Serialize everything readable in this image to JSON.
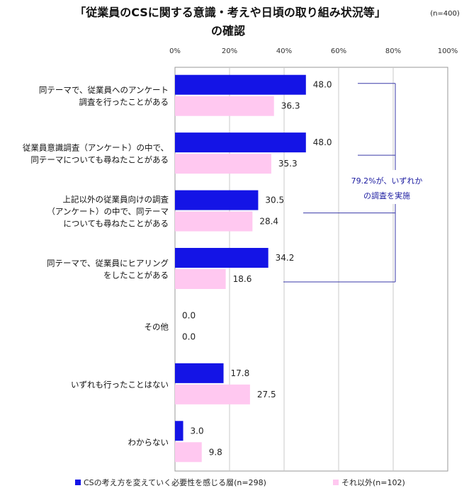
{
  "chart_data": {
    "type": "bar",
    "orientation": "horizontal",
    "title_lines": [
      "「従業員のCSに関する意識・考えや日頃の取り組み状況等」",
      "の確認"
    ],
    "sample_note": "(n=400)",
    "xlim": [
      0,
      100
    ],
    "x_ticks": [
      "0%",
      "20%",
      "40%",
      "60%",
      "80%",
      "100%"
    ],
    "grid": true,
    "categories": [
      [
        "同テーマで、従業員へのアンケート",
        "調査を行ったことがある"
      ],
      [
        "従業員意識調査（アンケート）の中で、",
        "同テーマについても尋ねたことがある"
      ],
      [
        "上記以外の従業員向けの調査",
        "（アンケート）の中で、同テーマ",
        "についても尋ねたことがある"
      ],
      [
        "同テーマで、従業員にヒアリング",
        "をしたことがある"
      ],
      [
        "その他"
      ],
      [
        "いずれも行ったことはない"
      ],
      [
        "わからない"
      ]
    ],
    "series": [
      {
        "name": "CSの考え方を変えていく必要性を感じる層(n=298)",
        "color": "#1414e6",
        "values": [
          48.0,
          48.0,
          30.5,
          34.2,
          0.0,
          17.8,
          3.0
        ],
        "labels": [
          "48.0",
          "48.0",
          "30.5",
          "34.2",
          "0.0",
          "17.8",
          "3.0"
        ]
      },
      {
        "name": "それ以外(n=102)",
        "color": "#ffc8f0",
        "values": [
          36.3,
          35.3,
          28.4,
          18.6,
          0.0,
          27.5,
          9.8
        ],
        "labels": [
          "36.3",
          "35.3",
          "28.4",
          "18.6",
          "0.0",
          "27.5",
          "9.8"
        ]
      }
    ],
    "annotation": [
      "79.2%が、いずれか",
      "の調査を実施"
    ],
    "legend_position": "bottom"
  }
}
